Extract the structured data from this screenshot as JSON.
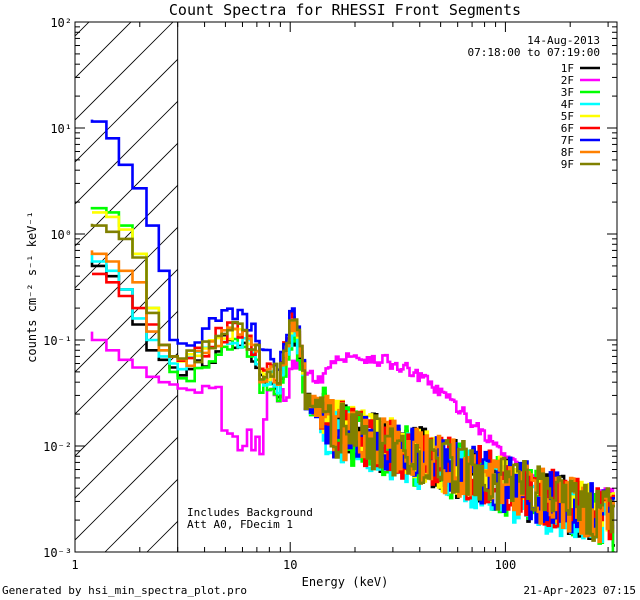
{
  "chart_data": {
    "type": "line",
    "title": "Count Spectra for RHESSI Front Segments",
    "xlabel": "Energy (keV)",
    "ylabel": "counts cm⁻² s⁻¹ keV⁻¹",
    "xscale": "log",
    "yscale": "log",
    "xlim": [
      1,
      330
    ],
    "ylim": [
      0.001,
      100
    ],
    "x_ticks": [
      {
        "value": 1,
        "label": "1"
      },
      {
        "value": 10,
        "label": "10"
      },
      {
        "value": 100,
        "label": "100"
      }
    ],
    "y_ticks": [
      {
        "value": 0.001,
        "label": "10⁻³"
      },
      {
        "value": 0.01,
        "label": "10⁻²"
      },
      {
        "value": 0.1,
        "label": "10⁻¹"
      },
      {
        "value": 1,
        "label": "10⁰"
      },
      {
        "value": 10,
        "label": "10¹"
      },
      {
        "value": 100,
        "label": "10²"
      }
    ],
    "excluded_region": {
      "x_from": 1,
      "x_to": 3,
      "style": "hatched"
    },
    "date": "14-Aug-2013",
    "time_range": "07:18:00 to 07:19:00",
    "annotations": [
      "Includes Background",
      "Att A0, FDecim 1"
    ],
    "legend_position": "top-right",
    "series": [
      {
        "name": "1F",
        "color": "#000000",
        "low_energy": [
          0.55,
          0.5,
          0.4,
          0.3,
          0.14,
          0.08,
          0.065,
          0.055
        ],
        "spike_peak": 0.09,
        "tail_at_20kev": 0.013,
        "tail_at_250kev": 0.0023
      },
      {
        "name": "2F",
        "color": "#ff00ff",
        "low_energy": [
          0.12,
          0.1,
          0.08,
          0.065,
          0.055,
          0.045,
          0.04,
          0.038
        ],
        "spike_peak": 0.06,
        "hump_at_20kev": 0.065,
        "tail_at_250kev": 0.004
      },
      {
        "name": "3F",
        "color": "#00ff00",
        "low_energy": [
          1.8,
          1.75,
          1.6,
          1.2,
          0.65,
          0.2,
          0.08,
          0.05
        ],
        "spike_peak": 0.08,
        "tail_at_20kev": 0.012,
        "tail_at_250kev": 0.0022
      },
      {
        "name": "4F",
        "color": "#00ffff",
        "low_energy": [
          0.65,
          0.55,
          0.45,
          0.3,
          0.16,
          0.1,
          0.07,
          0.06
        ],
        "spike_peak": 0.085,
        "tail_at_20kev": 0.012,
        "tail_at_250kev": 0.002
      },
      {
        "name": "5F",
        "color": "#ffff00",
        "low_energy": [
          1.6,
          1.6,
          1.45,
          1.1,
          0.65,
          0.2,
          0.09,
          0.07
        ],
        "spike_peak": 0.12,
        "tail_at_20kev": 0.013,
        "tail_at_250kev": 0.0025
      },
      {
        "name": "6F",
        "color": "#ff0000",
        "low_energy": [
          0.42,
          0.42,
          0.35,
          0.26,
          0.2,
          0.14,
          0.09,
          0.07
        ],
        "spike_peak": 0.13,
        "tail_at_20kev": 0.013,
        "tail_at_250kev": 0.0025
      },
      {
        "name": "7F",
        "color": "#0000ff",
        "low_energy": [
          12,
          11.5,
          8,
          4.5,
          2.7,
          1.2,
          0.45,
          0.1
        ],
        "spike_peak": 0.12,
        "tail_at_20kev": 0.012,
        "tail_at_250kev": 0.0025
      },
      {
        "name": "8F",
        "color": "#ff8000",
        "low_energy": [
          0.7,
          0.65,
          0.55,
          0.45,
          0.35,
          0.12,
          0.08,
          0.07
        ],
        "spike_peak": 0.1,
        "tail_at_20kev": 0.013,
        "tail_at_250kev": 0.0024
      },
      {
        "name": "9F",
        "color": "#808000",
        "low_energy": [
          1.25,
          1.2,
          1.05,
          0.9,
          0.6,
          0.18,
          0.09,
          0.07
        ],
        "spike_peak": 0.11,
        "tail_at_20kev": 0.013,
        "tail_at_250kev": 0.0024
      }
    ]
  },
  "footer": {
    "generated_by": "Generated by hsi_min_spectra_plot.pro",
    "timestamp": "21-Apr-2023 07:15"
  }
}
